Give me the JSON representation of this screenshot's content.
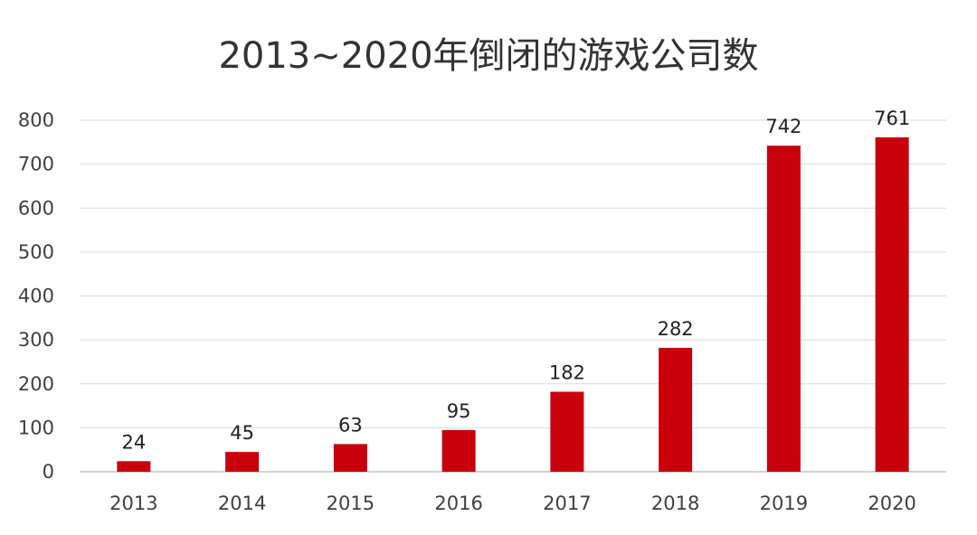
{
  "chart_data": {
    "type": "bar",
    "title": "2013~2020年倒闭的游戏公司数",
    "categories": [
      "2013",
      "2014",
      "2015",
      "2016",
      "2017",
      "2018",
      "2019",
      "2020"
    ],
    "values": [
      24,
      45,
      63,
      95,
      182,
      282,
      742,
      761
    ],
    "data_labels": [
      "24",
      "45",
      "63",
      "95",
      "182",
      "282",
      "742",
      "761"
    ],
    "y_ticks": [
      "0",
      "100",
      "200",
      "300",
      "400",
      "500",
      "600",
      "700",
      "800"
    ],
    "ylim": [
      0,
      800
    ],
    "xlabel": "",
    "ylabel": "",
    "grid": true,
    "legend": "none",
    "bar_color": "#c8000b",
    "grid_color": "#d9d9d9",
    "axis_color": "#c0c0c0"
  }
}
